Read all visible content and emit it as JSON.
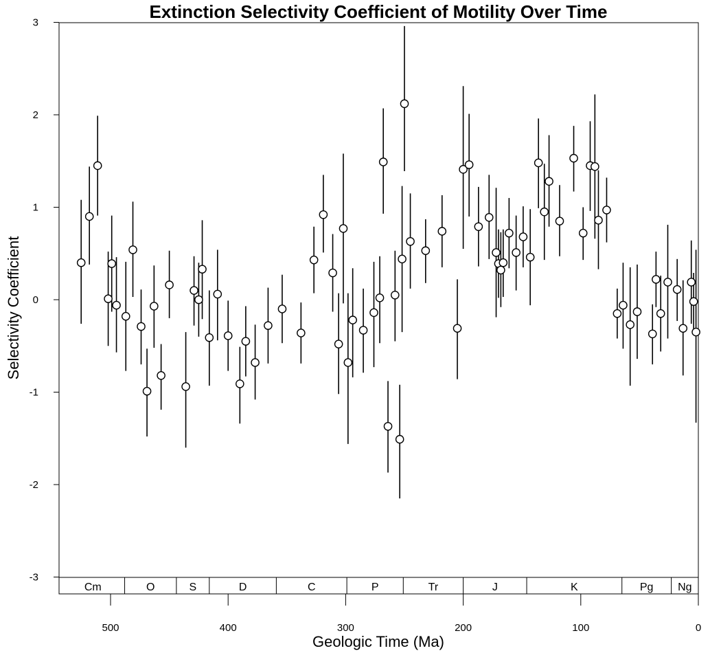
{
  "chart_data": {
    "type": "scatter",
    "title": "Extinction Selectivity Coefficient of Motility Over Time",
    "xlabel": "Geologic Time (Ma)",
    "ylabel": "Selectivity Coefficient",
    "xlim": [
      543,
      0
    ],
    "ylim": [
      -3,
      3
    ],
    "x_ticks": [
      500,
      400,
      300,
      200,
      100,
      0
    ],
    "y_ticks": [
      3,
      2,
      1,
      0,
      -1,
      -2,
      -3
    ],
    "error_bars": true,
    "periods": [
      {
        "label": "Cm",
        "start": 542,
        "end": 488
      },
      {
        "label": "O",
        "start": 488,
        "end": 444
      },
      {
        "label": "S",
        "start": 444,
        "end": 416
      },
      {
        "label": "D",
        "start": 416,
        "end": 359
      },
      {
        "label": "C",
        "start": 359,
        "end": 299
      },
      {
        "label": "P",
        "start": 299,
        "end": 251
      },
      {
        "label": "Tr",
        "start": 251,
        "end": 200
      },
      {
        "label": "J",
        "start": 200,
        "end": 146
      },
      {
        "label": "K",
        "start": 146,
        "end": 65
      },
      {
        "label": "Pg",
        "start": 65,
        "end": 23
      },
      {
        "label": "Ng",
        "start": 23,
        "end": 0
      }
    ],
    "points": [
      {
        "x": 525,
        "y": 0.4,
        "lo": -0.26,
        "hi": 1.08
      },
      {
        "x": 518,
        "y": 0.9,
        "lo": 0.38,
        "hi": 1.44
      },
      {
        "x": 511,
        "y": 1.45,
        "lo": 0.91,
        "hi": 1.99
      },
      {
        "x": 502,
        "y": 0.01,
        "lo": -0.5,
        "hi": 0.52
      },
      {
        "x": 499,
        "y": 0.39,
        "lo": -0.13,
        "hi": 0.91
      },
      {
        "x": 495,
        "y": -0.06,
        "lo": -0.57,
        "hi": 0.46
      },
      {
        "x": 487,
        "y": -0.18,
        "lo": -0.77,
        "hi": 0.41
      },
      {
        "x": 481,
        "y": 0.54,
        "lo": 0.03,
        "hi": 1.06
      },
      {
        "x": 474,
        "y": -0.29,
        "lo": -0.7,
        "hi": 0.11
      },
      {
        "x": 469,
        "y": -0.99,
        "lo": -1.48,
        "hi": -0.53
      },
      {
        "x": 463,
        "y": -0.07,
        "lo": -0.52,
        "hi": 0.37
      },
      {
        "x": 457,
        "y": -0.82,
        "lo": -1.19,
        "hi": -0.48
      },
      {
        "x": 450,
        "y": 0.16,
        "lo": -0.2,
        "hi": 0.53
      },
      {
        "x": 436,
        "y": -0.94,
        "lo": -1.6,
        "hi": -0.35
      },
      {
        "x": 429,
        "y": 0.1,
        "lo": -0.28,
        "hi": 0.47
      },
      {
        "x": 425,
        "y": 0.0,
        "lo": -0.4,
        "hi": 0.4
      },
      {
        "x": 422,
        "y": 0.33,
        "lo": -0.21,
        "hi": 0.86
      },
      {
        "x": 416,
        "y": -0.41,
        "lo": -0.93,
        "hi": 0.1
      },
      {
        "x": 409,
        "y": 0.06,
        "lo": -0.44,
        "hi": 0.54
      },
      {
        "x": 400,
        "y": -0.39,
        "lo": -0.77,
        "hi": -0.01
      },
      {
        "x": 390,
        "y": -0.91,
        "lo": -1.34,
        "hi": -0.51
      },
      {
        "x": 385,
        "y": -0.45,
        "lo": -0.83,
        "hi": -0.07
      },
      {
        "x": 377,
        "y": -0.68,
        "lo": -1.08,
        "hi": -0.27
      },
      {
        "x": 366,
        "y": -0.28,
        "lo": -0.69,
        "hi": 0.13
      },
      {
        "x": 354,
        "y": -0.1,
        "lo": -0.47,
        "hi": 0.27
      },
      {
        "x": 338,
        "y": -0.36,
        "lo": -0.69,
        "hi": -0.03
      },
      {
        "x": 327,
        "y": 0.43,
        "lo": 0.07,
        "hi": 0.79
      },
      {
        "x": 319,
        "y": 0.92,
        "lo": 0.51,
        "hi": 1.35
      },
      {
        "x": 311,
        "y": 0.29,
        "lo": -0.13,
        "hi": 0.71
      },
      {
        "x": 306,
        "y": -0.48,
        "lo": -1.02,
        "hi": 0.07
      },
      {
        "x": 302,
        "y": 0.77,
        "lo": -0.04,
        "hi": 1.58
      },
      {
        "x": 298,
        "y": -0.68,
        "lo": -1.56,
        "hi": 0.07
      },
      {
        "x": 294,
        "y": -0.22,
        "lo": -0.84,
        "hi": 0.34
      },
      {
        "x": 285,
        "y": -0.33,
        "lo": -0.79,
        "hi": 0.12
      },
      {
        "x": 276,
        "y": -0.14,
        "lo": -0.73,
        "hi": 0.41
      },
      {
        "x": 271,
        "y": 0.02,
        "lo": -0.47,
        "hi": 0.47
      },
      {
        "x": 268,
        "y": 1.49,
        "lo": 0.93,
        "hi": 2.07
      },
      {
        "x": 264,
        "y": -1.37,
        "lo": -1.87,
        "hi": -0.88
      },
      {
        "x": 258,
        "y": 0.05,
        "lo": -0.45,
        "hi": 0.53
      },
      {
        "x": 254,
        "y": -1.51,
        "lo": -2.15,
        "hi": -0.92
      },
      {
        "x": 252,
        "y": 0.44,
        "lo": -0.35,
        "hi": 1.23
      },
      {
        "x": 250,
        "y": 2.12,
        "lo": 1.39,
        "hi": 2.96
      },
      {
        "x": 245,
        "y": 0.63,
        "lo": 0.12,
        "hi": 1.15
      },
      {
        "x": 232,
        "y": 0.53,
        "lo": 0.18,
        "hi": 0.87
      },
      {
        "x": 218,
        "y": 0.74,
        "lo": 0.35,
        "hi": 1.13
      },
      {
        "x": 205,
        "y": -0.31,
        "lo": -0.86,
        "hi": 0.22
      },
      {
        "x": 200,
        "y": 1.41,
        "lo": 0.55,
        "hi": 2.31
      },
      {
        "x": 195,
        "y": 1.46,
        "lo": 0.9,
        "hi": 2.01
      },
      {
        "x": 187,
        "y": 0.79,
        "lo": 0.36,
        "hi": 1.22
      },
      {
        "x": 178,
        "y": 0.89,
        "lo": 0.44,
        "hi": 1.35
      },
      {
        "x": 172,
        "y": 0.51,
        "lo": -0.19,
        "hi": 1.21
      },
      {
        "x": 170,
        "y": 0.39,
        "lo": 0.02,
        "hi": 0.76
      },
      {
        "x": 168,
        "y": 0.32,
        "lo": -0.08,
        "hi": 0.73
      },
      {
        "x": 166,
        "y": 0.4,
        "lo": 0.03,
        "hi": 0.76
      },
      {
        "x": 161,
        "y": 0.72,
        "lo": 0.34,
        "hi": 1.1
      },
      {
        "x": 155,
        "y": 0.51,
        "lo": 0.1,
        "hi": 0.91
      },
      {
        "x": 149,
        "y": 0.68,
        "lo": 0.35,
        "hi": 1.01
      },
      {
        "x": 143,
        "y": 0.46,
        "lo": -0.06,
        "hi": 0.98
      },
      {
        "x": 136,
        "y": 1.48,
        "lo": 0.99,
        "hi": 1.96
      },
      {
        "x": 131,
        "y": 0.95,
        "lo": 0.43,
        "hi": 1.47
      },
      {
        "x": 127,
        "y": 1.28,
        "lo": 0.79,
        "hi": 1.78
      },
      {
        "x": 118,
        "y": 0.85,
        "lo": 0.47,
        "hi": 1.24
      },
      {
        "x": 106,
        "y": 1.53,
        "lo": 1.17,
        "hi": 1.88
      },
      {
        "x": 98,
        "y": 0.72,
        "lo": 0.43,
        "hi": 1.0
      },
      {
        "x": 92,
        "y": 1.45,
        "lo": 0.96,
        "hi": 1.93
      },
      {
        "x": 88,
        "y": 1.44,
        "lo": 0.66,
        "hi": 2.22
      },
      {
        "x": 85,
        "y": 0.86,
        "lo": 0.33,
        "hi": 1.4
      },
      {
        "x": 78,
        "y": 0.97,
        "lo": 0.62,
        "hi": 1.32
      },
      {
        "x": 69,
        "y": -0.15,
        "lo": -0.42,
        "hi": 0.12
      },
      {
        "x": 64,
        "y": -0.06,
        "lo": -0.53,
        "hi": 0.4
      },
      {
        "x": 58,
        "y": -0.27,
        "lo": -0.93,
        "hi": 0.35
      },
      {
        "x": 52,
        "y": -0.13,
        "lo": -0.64,
        "hi": 0.38
      },
      {
        "x": 39,
        "y": -0.37,
        "lo": -0.7,
        "hi": -0.05
      },
      {
        "x": 36,
        "y": 0.22,
        "lo": -0.08,
        "hi": 0.52
      },
      {
        "x": 32,
        "y": -0.15,
        "lo": -0.56,
        "hi": 0.26
      },
      {
        "x": 26,
        "y": 0.19,
        "lo": -0.42,
        "hi": 0.81
      },
      {
        "x": 18,
        "y": 0.11,
        "lo": -0.23,
        "hi": 0.44
      },
      {
        "x": 13,
        "y": -0.31,
        "lo": -0.82,
        "hi": 0.21
      },
      {
        "x": 6,
        "y": 0.19,
        "lo": -0.26,
        "hi": 0.64
      },
      {
        "x": 4,
        "y": -0.02,
        "lo": -0.33,
        "hi": 0.29
      },
      {
        "x": 2,
        "y": -0.35,
        "lo": -1.33,
        "hi": 0.54
      }
    ]
  }
}
